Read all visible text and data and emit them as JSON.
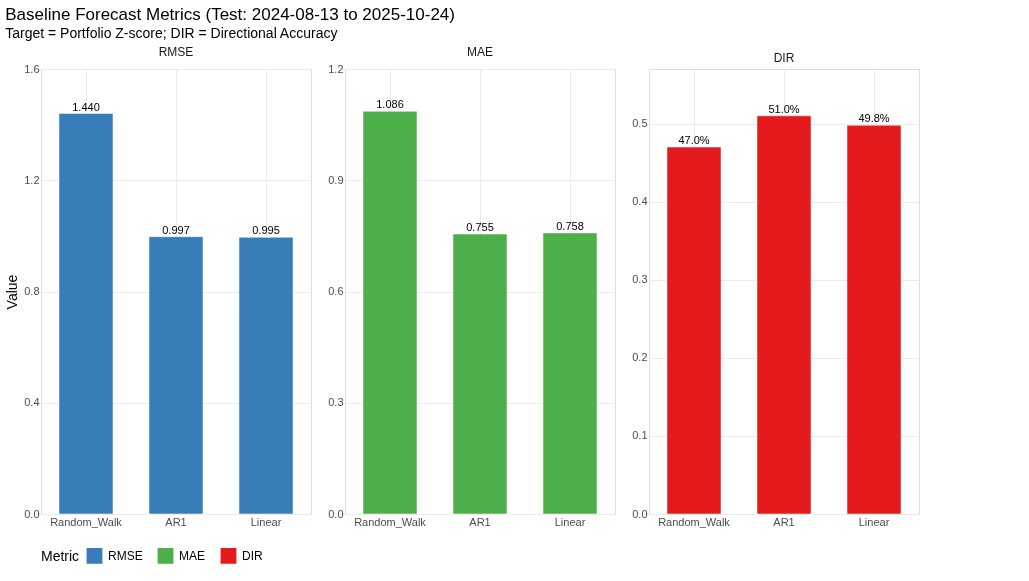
{
  "chart_data": [
    {
      "type": "bar",
      "title": "RMSE",
      "ylabel": "Value",
      "annotations": [
        "Baseline Forecast Metrics (Test: 2024-08-13 to 2025-10-24)",
        "Target = Portfolio Z-score; DIR = Directional Accuracy"
      ],
      "legend_title": "Metric",
      "legend": "bottom",
      "grid": true,
      "categories": [
        "Random_Walk",
        "AR1",
        "Linear"
      ],
      "series": [
        {
          "name": "RMSE",
          "color": "#377eb8",
          "values": [
            1.44,
            0.997,
            0.995
          ],
          "value_labels": [
            "1.440",
            "0.997",
            "0.995"
          ]
        }
      ],
      "ylim": [
        0,
        1.6
      ],
      "yticks": [
        {
          "value": 0,
          "label": "0.0"
        },
        {
          "value": 0.4,
          "label": "0.4"
        },
        {
          "value": 0.8,
          "label": "0.8"
        },
        {
          "value": 1.2,
          "label": "1.2"
        },
        {
          "value": 1.6,
          "label": "1.6"
        }
      ]
    },
    {
      "type": "bar",
      "title": "MAE",
      "legend": "bottom",
      "grid": true,
      "categories": [
        "Random_Walk",
        "AR1",
        "Linear"
      ],
      "series": [
        {
          "name": "MAE",
          "color": "#4daf4a",
          "values": [
            1.086,
            0.755,
            0.758
          ],
          "value_labels": [
            "1.086",
            "0.755",
            "0.758"
          ]
        }
      ],
      "ylim": [
        0,
        1.2
      ],
      "yticks": [
        {
          "value": 0,
          "label": "0.0"
        },
        {
          "value": 0.3,
          "label": "0.3"
        },
        {
          "value": 0.6,
          "label": "0.6"
        },
        {
          "value": 0.9,
          "label": "0.9"
        },
        {
          "value": 1.2,
          "label": "1.2"
        }
      ]
    },
    {
      "type": "bar",
      "title": "DIR",
      "legend": "bottom",
      "grid": true,
      "categories": [
        "Random_Walk",
        "AR1",
        "Linear"
      ],
      "series": [
        {
          "name": "DIR",
          "color": "#e41a1c",
          "values": [
            0.47,
            0.51,
            0.498
          ],
          "value_labels": [
            "47.0%",
            "51.0%",
            "49.8%"
          ]
        }
      ],
      "ylim": [
        0,
        0.57
      ],
      "yticks": [
        {
          "value": 0,
          "label": "0.0"
        },
        {
          "value": 0.1,
          "label": "0.1"
        },
        {
          "value": 0.2,
          "label": "0.2"
        },
        {
          "value": 0.3,
          "label": "0.3"
        },
        {
          "value": 0.4,
          "label": "0.4"
        },
        {
          "value": 0.5,
          "label": "0.5"
        }
      ]
    }
  ]
}
